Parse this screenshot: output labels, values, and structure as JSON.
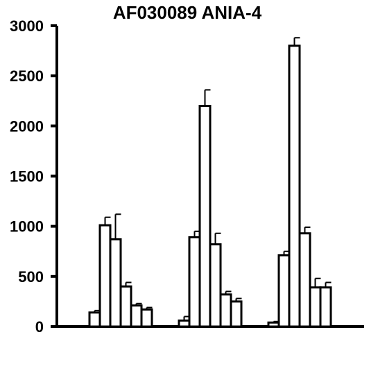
{
  "chart_data": {
    "type": "bar",
    "title": "AF030089 ANIA-4",
    "xlabel": "",
    "ylabel": "",
    "ylim": [
      0,
      3000
    ],
    "yticks": [
      0,
      500,
      1000,
      1500,
      2000,
      2500,
      3000
    ],
    "ytick_labels": [
      "0",
      "500",
      "1000",
      "1500",
      "2000",
      "2500",
      "3000"
    ],
    "grid": false,
    "legend": "none",
    "bar_fill": "#ffffff",
    "bar_stroke": "#000000",
    "groups": [
      {
        "values": [
          140,
          1010,
          870,
          400,
          210,
          170
        ],
        "errors": [
          20,
          80,
          250,
          40,
          20,
          20
        ]
      },
      {
        "values": [
          60,
          890,
          2200,
          820,
          320,
          250
        ],
        "errors": [
          40,
          60,
          160,
          110,
          30,
          30
        ]
      },
      {
        "values": [
          40,
          710,
          2800,
          930,
          390,
          390
        ],
        "errors": [
          10,
          40,
          80,
          60,
          90,
          50
        ]
      }
    ]
  }
}
